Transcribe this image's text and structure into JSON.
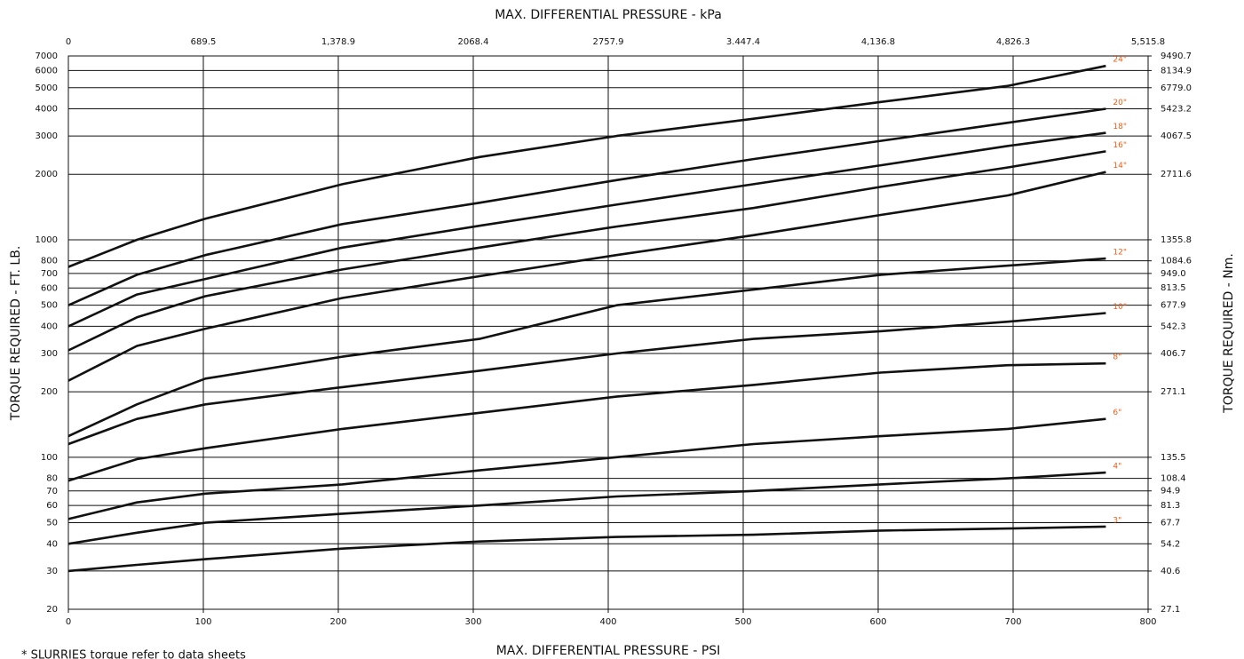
{
  "chart_data": {
    "type": "line",
    "x2_title": "MAX. DIFFERENTIAL PRESSURE - kPa",
    "x_title": "MAX. DIFFERENTIAL PRESSURE - PSI",
    "y_title": "TORQUE REQUIRED - FT. LB.",
    "y2_title": "TORQUE REQUIRED - Nm.",
    "footnote": "* SLURRIES torque refer to data sheets",
    "x": [
      0,
      350,
      700,
      1400,
      2100,
      2800,
      3500,
      4150,
      4800,
      5300
    ],
    "xlim": [
      0,
      5515.8
    ],
    "xticks": [
      0,
      689.5,
      {
        "value": 1378.9,
        "label": "1,378.9"
      },
      2068.4,
      2757.9,
      {
        "value": 3447.4,
        "label": "3.447.4"
      },
      {
        "value": 4136.8,
        "label": "4,136.8"
      },
      {
        "value": 4826.3,
        "label": "4,826.3"
      },
      {
        "value": 5515.8,
        "label": "5,515.8"
      }
    ],
    "x2lim": [
      0,
      800
    ],
    "x2ticks": [
      0,
      100,
      200,
      300,
      400,
      500,
      600,
      700,
      800
    ],
    "ylim": [
      20,
      7000
    ],
    "ylog": true,
    "yticks": [
      20,
      30,
      40,
      50,
      60,
      70,
      80,
      100,
      200,
      300,
      400,
      500,
      600,
      700,
      800,
      1000,
      2000,
      3000,
      4000,
      5000,
      6000,
      7000
    ],
    "y2lim": [
      27.1,
      9490.7
    ],
    "y2ticks": [
      27.1,
      40.6,
      54.2,
      67.7,
      81.3,
      94.9,
      108.4,
      135.5,
      271.1,
      406.7,
      542.3,
      677.9,
      813.5,
      {
        "value": 949,
        "label": "949.0"
      },
      1084.6,
      1355.8,
      2711.6,
      4067.5,
      5423.2,
      {
        "value": 6779,
        "label": "6779.0"
      },
      8134.9,
      9490.7
    ],
    "grid": true,
    "line_color": "#111111",
    "label_color": "#e8601c",
    "series": [
      {
        "name": "24\"",
        "values": [
          750,
          1000,
          1250,
          1800,
          2400,
          3000,
          3600,
          4300,
          5100,
          6300
        ]
      },
      {
        "name": "20\"",
        "values": [
          500,
          690,
          850,
          1180,
          1480,
          1880,
          2350,
          2850,
          3450,
          4000
        ]
      },
      {
        "name": "18\"",
        "values": [
          400,
          560,
          660,
          920,
          1160,
          1450,
          1800,
          2200,
          2700,
          3100
        ]
      },
      {
        "name": "16\"",
        "values": [
          310,
          440,
          550,
          730,
          920,
          1150,
          1400,
          1750,
          2150,
          2550
        ]
      },
      {
        "name": "14\"",
        "values": [
          225,
          325,
          390,
          540,
          680,
          850,
          1050,
          1300,
          1600,
          2050
        ]
      },
      {
        "name": "12\"",
        "values": [
          125,
          175,
          230,
          290,
          350,
          500,
          590,
          690,
          760,
          820
        ]
      },
      {
        "name": "10\"",
        "values": [
          115,
          150,
          175,
          210,
          250,
          300,
          350,
          380,
          420,
          460
        ]
      },
      {
        "name": "8\"",
        "values": [
          78,
          98,
          110,
          135,
          160,
          190,
          215,
          245,
          265,
          270
        ]
      },
      {
        "name": "6\"",
        "values": [
          52,
          62,
          68,
          75,
          87,
          100,
          115,
          125,
          135,
          150
        ]
      },
      {
        "name": "4\"",
        "values": [
          40,
          45,
          50,
          55,
          60,
          66,
          70,
          75,
          80,
          85
        ]
      },
      {
        "name": "3\"",
        "values": [
          30,
          32,
          34,
          38,
          41,
          43,
          44,
          46,
          47,
          48
        ]
      }
    ]
  }
}
